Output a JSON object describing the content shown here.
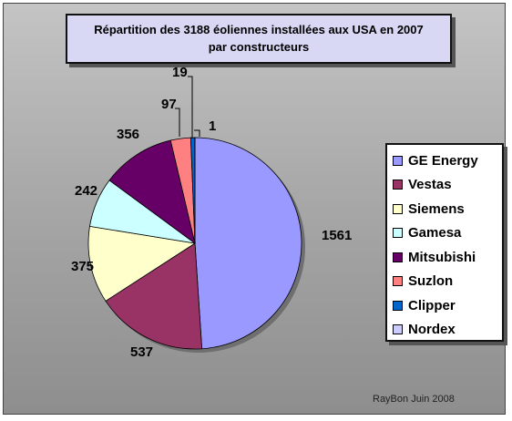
{
  "chart_data": {
    "type": "pie",
    "title": "Répartition des 3188 éoliennes installées aux USA en 2007",
    "subtitle": "par constructeurs",
    "categories": [
      "GE Energy",
      "Vestas",
      "Siemens",
      "Gamesa",
      "Mitsubishi",
      "Suzlon",
      "Clipper",
      "Nordex"
    ],
    "values": [
      1561,
      537,
      375,
      242,
      356,
      97,
      19,
      1
    ],
    "colors": [
      "#9999ff",
      "#993366",
      "#ffffcc",
      "#ccffff",
      "#660066",
      "#ff8080",
      "#0066cc",
      "#ccccff"
    ],
    "legend_position": "right"
  },
  "credit": "RayBon Juin 2008"
}
